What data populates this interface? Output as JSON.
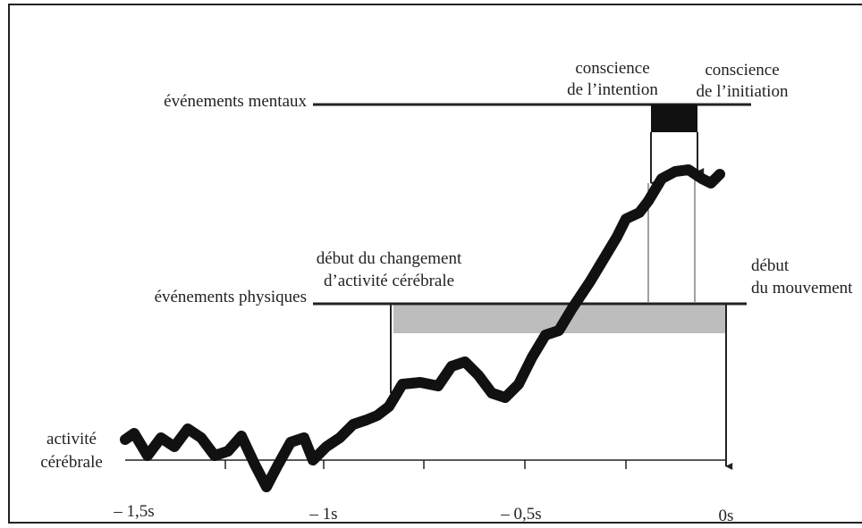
{
  "labels": {
    "mental_events": "événements mentaux",
    "intention": [
      "conscience",
      "de l’intention"
    ],
    "initiation": [
      "conscience",
      "de l’initiation"
    ],
    "brain_change": [
      "début du changement",
      "d’activité cérébrale"
    ],
    "physical_events": "événements physiques",
    "movement": [
      "début",
      "du mouvement"
    ],
    "activity": [
      "activité",
      "cérébrale"
    ]
  },
  "time_axis": [
    "– 1,5s",
    "– 1s",
    "– 0,5s",
    "0s"
  ]
}
